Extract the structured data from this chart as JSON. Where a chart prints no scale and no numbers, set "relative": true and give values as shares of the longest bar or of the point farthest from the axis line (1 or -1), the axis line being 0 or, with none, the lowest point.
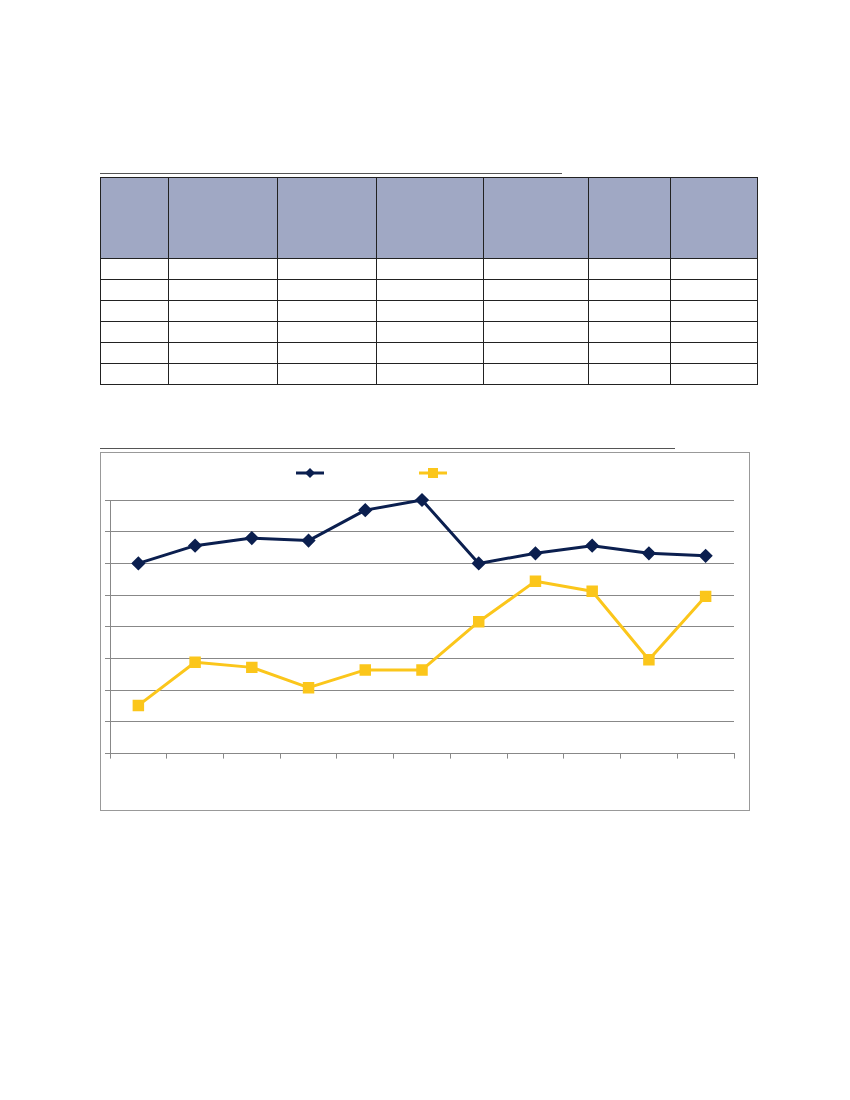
{
  "chart_data": {
    "type": "line",
    "relative": true,
    "grid": "y",
    "line_style": "solid",
    "categories": [
      null,
      null,
      null,
      null,
      null,
      null,
      null,
      null,
      null,
      null,
      null
    ],
    "series": [
      {
        "color": "#0b1f4f",
        "marker": "diamond",
        "values": [
          0.75,
          0.82,
          0.85,
          0.84,
          0.96,
          1,
          0.75,
          0.79,
          0.82,
          0.79,
          0.78
        ]
      },
      {
        "color": "#fbc61b",
        "marker": "square",
        "values": [
          0.19,
          0.36,
          0.34,
          0.26,
          0.33,
          0.33,
          0.52,
          0.68,
          0.64,
          0.37,
          0.62
        ]
      }
    ]
  }
}
